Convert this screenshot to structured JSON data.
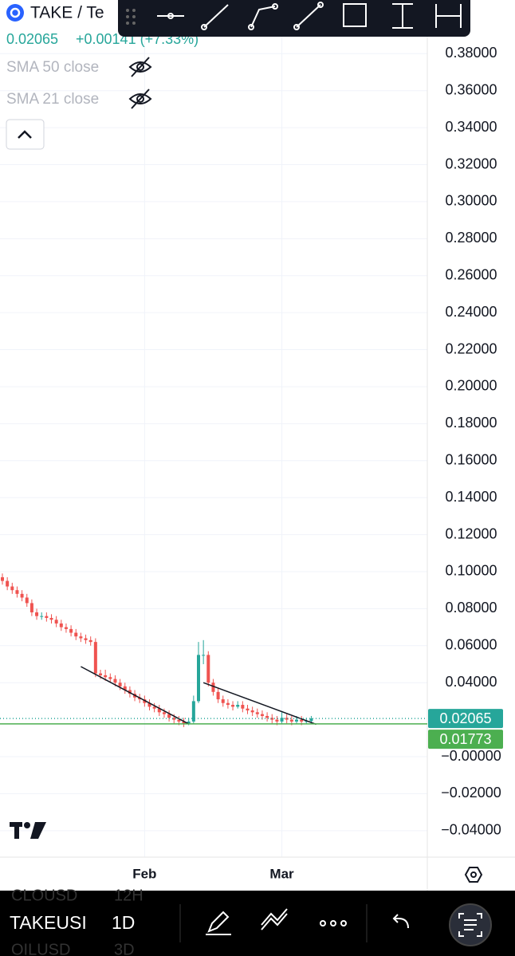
{
  "header": {
    "symbol": "TAKE / Te",
    "price": "0.02065",
    "change": "+0.00141 (+7.33%)",
    "indicators": [
      "SMA 50 close",
      "SMA 21 close"
    ]
  },
  "chart_data": {
    "type": "candlestick",
    "categories": [
      null,
      null,
      null,
      null,
      null,
      null,
      null,
      null,
      null,
      null,
      null,
      null,
      null,
      null,
      null,
      null,
      null,
      null,
      null,
      null,
      null,
      null,
      null,
      null,
      null,
      null,
      null,
      null,
      null,
      "Feb",
      null,
      null,
      null,
      null,
      null,
      null,
      null,
      null,
      null,
      null,
      null,
      null,
      null,
      null,
      null,
      null,
      null,
      null,
      null,
      null,
      null,
      null,
      null,
      null,
      null,
      null,
      null,
      "Mar",
      null,
      null,
      null,
      null,
      null,
      null
    ],
    "open": [
      0.097,
      0.095,
      0.092,
      0.09,
      0.088,
      0.086,
      0.083,
      0.078,
      0.076,
      0.076,
      0.075,
      0.074,
      0.072,
      0.07,
      0.069,
      0.067,
      0.065,
      0.064,
      0.063,
      0.062,
      0.045,
      0.044,
      0.043,
      0.042,
      0.04,
      0.038,
      0.036,
      0.034,
      0.032,
      0.031,
      0.029,
      0.027,
      0.026,
      0.024,
      0.023,
      0.021,
      0.02,
      0.019,
      0.018,
      0.019,
      0.03,
      0.055,
      0.055,
      0.04,
      0.035,
      0.031,
      0.029,
      0.028,
      0.027,
      0.028,
      0.026,
      0.025,
      0.024,
      0.023,
      0.022,
      0.021,
      0.02,
      0.019,
      0.021,
      0.02,
      0.019,
      0.02,
      0.019,
      0.0192
    ],
    "high": [
      0.099,
      0.097,
      0.094,
      0.092,
      0.09,
      0.088,
      0.085,
      0.08,
      0.078,
      0.078,
      0.077,
      0.076,
      0.074,
      0.072,
      0.071,
      0.069,
      0.067,
      0.066,
      0.065,
      0.064,
      0.047,
      0.047,
      0.045,
      0.044,
      0.042,
      0.04,
      0.038,
      0.036,
      0.034,
      0.033,
      0.031,
      0.029,
      0.028,
      0.026,
      0.025,
      0.023,
      0.022,
      0.021,
      0.021,
      0.033,
      0.062,
      0.063,
      0.057,
      0.042,
      0.037,
      0.033,
      0.031,
      0.03,
      0.03,
      0.03,
      0.028,
      0.027,
      0.026,
      0.025,
      0.024,
      0.023,
      0.022,
      0.024,
      0.023,
      0.022,
      0.022,
      0.022,
      0.021,
      0.022
    ],
    "low": [
      0.093,
      0.09,
      0.088,
      0.086,
      0.084,
      0.081,
      0.076,
      0.074,
      0.074,
      0.073,
      0.072,
      0.07,
      0.068,
      0.067,
      0.065,
      0.063,
      0.062,
      0.061,
      0.06,
      0.043,
      0.042,
      0.041,
      0.04,
      0.038,
      0.036,
      0.034,
      0.032,
      0.03,
      0.029,
      0.027,
      0.025,
      0.024,
      0.022,
      0.021,
      0.019,
      0.018,
      0.017,
      0.016,
      0.017,
      0.018,
      0.029,
      0.05,
      0.038,
      0.033,
      0.029,
      0.027,
      0.026,
      0.025,
      0.026,
      0.024,
      0.023,
      0.022,
      0.021,
      0.02,
      0.019,
      0.018,
      0.017,
      0.018,
      0.018,
      0.017,
      0.018,
      0.017,
      0.018,
      0.018
    ],
    "close": [
      0.095,
      0.092,
      0.09,
      0.088,
      0.086,
      0.083,
      0.078,
      0.076,
      0.076,
      0.075,
      0.074,
      0.072,
      0.07,
      0.069,
      0.067,
      0.065,
      0.064,
      0.063,
      0.062,
      0.045,
      0.044,
      0.043,
      0.042,
      0.04,
      0.038,
      0.036,
      0.034,
      0.032,
      0.031,
      0.029,
      0.027,
      0.026,
      0.024,
      0.023,
      0.021,
      0.02,
      0.019,
      0.018,
      0.019,
      0.03,
      0.055,
      0.055,
      0.04,
      0.035,
      0.031,
      0.029,
      0.028,
      0.027,
      0.028,
      0.026,
      0.025,
      0.024,
      0.023,
      0.022,
      0.021,
      0.02,
      0.019,
      0.021,
      0.02,
      0.019,
      0.02,
      0.019,
      0.0192,
      0.02065
    ],
    "up_color": "#26a69a",
    "down_color": "#ef5350",
    "ylim": [
      -0.0543,
      0.409
    ],
    "yticks": [
      {
        "value": 0.38,
        "label": "0.38000"
      },
      {
        "value": 0.36,
        "label": "0.36000"
      },
      {
        "value": 0.34,
        "label": "0.34000"
      },
      {
        "value": 0.32,
        "label": "0.32000"
      },
      {
        "value": 0.3,
        "label": "0.30000"
      },
      {
        "value": 0.28,
        "label": "0.28000"
      },
      {
        "value": 0.26,
        "label": "0.26000"
      },
      {
        "value": 0.24,
        "label": "0.24000"
      },
      {
        "value": 0.22,
        "label": "0.22000"
      },
      {
        "value": 0.2,
        "label": "0.20000"
      },
      {
        "value": 0.18,
        "label": "0.18000"
      },
      {
        "value": 0.16,
        "label": "0.16000"
      },
      {
        "value": 0.14,
        "label": "0.14000"
      },
      {
        "value": 0.12,
        "label": "0.12000"
      },
      {
        "value": 0.1,
        "label": "0.10000"
      },
      {
        "value": 0.08,
        "label": "0.08000"
      },
      {
        "value": 0.06,
        "label": "0.06000"
      },
      {
        "value": 0.04,
        "label": "0.04000"
      },
      {
        "value": 0,
        "label": "−0.00000"
      },
      {
        "value": -0.02,
        "label": "−0.02000"
      },
      {
        "value": -0.04,
        "label": "−0.04000"
      }
    ],
    "grid": true,
    "price_lines": [
      {
        "value": 0.02065,
        "label": "0.02065",
        "color": "#26a69a",
        "style": "dotted"
      },
      {
        "value": 0.01773,
        "label": "0.01773",
        "color": "#4caf50",
        "style": "solid"
      }
    ],
    "trend_lines": [
      {
        "x": [
          16,
          38
        ],
        "y": [
          0.0487,
          0.0177
        ]
      },
      {
        "x": [
          41,
          64
        ],
        "y": [
          0.04,
          0.0175
        ]
      }
    ]
  },
  "bottom_bar": {
    "symbol": "TAKEUSI",
    "interval": "1D",
    "ghost": [
      "CLOUSD",
      "12H",
      "OILUSD",
      "3D"
    ]
  }
}
